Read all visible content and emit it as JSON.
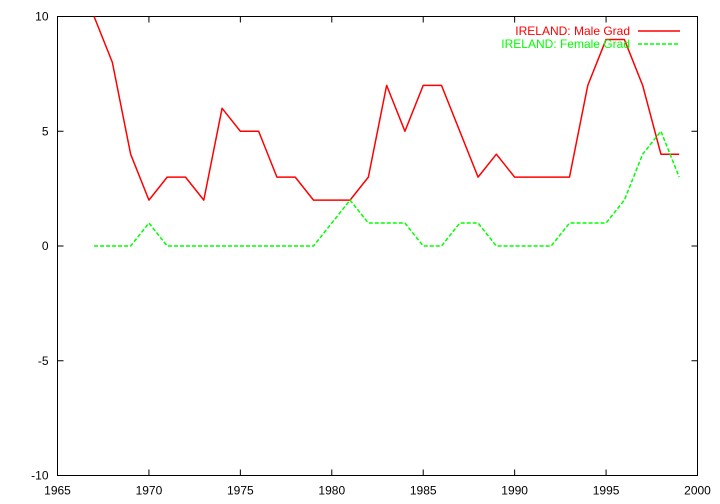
{
  "chart_data": {
    "type": "line",
    "title": "",
    "xlabel": "",
    "ylabel": "",
    "xlim": [
      1965,
      2000
    ],
    "ylim": [
      -10,
      10
    ],
    "grid": false,
    "legend_position": "top-right",
    "x_ticks": [
      1965,
      1970,
      1975,
      1980,
      1985,
      1990,
      1995,
      2000
    ],
    "y_ticks": [
      -10,
      -5,
      0,
      5,
      10
    ],
    "x_tick_labels": [
      "1965",
      "1970",
      "1975",
      "1980",
      "1985",
      "1990",
      "1995",
      "2000"
    ],
    "y_tick_labels": [
      "-10",
      "-5",
      "0",
      "5",
      "10"
    ],
    "x": [
      1967,
      1968,
      1969,
      1970,
      1971,
      1972,
      1973,
      1974,
      1975,
      1976,
      1977,
      1978,
      1979,
      1980,
      1981,
      1982,
      1983,
      1984,
      1985,
      1986,
      1987,
      1988,
      1989,
      1990,
      1991,
      1992,
      1993,
      1994,
      1995,
      1996,
      1997,
      1998,
      1999
    ],
    "series": [
      {
        "name": "IRELAND: Male Grad",
        "color": "#ff0000",
        "style": "solid",
        "values": [
          10,
          8,
          4,
          2,
          3,
          3,
          2,
          6,
          5,
          5,
          3,
          3,
          2,
          2,
          2,
          3,
          7,
          5,
          7,
          7,
          5,
          3,
          4,
          3,
          3,
          3,
          3,
          7,
          9,
          9,
          7,
          4,
          4
        ]
      },
      {
        "name": "IRELAND: Female Grad",
        "color": "#00ff00",
        "style": "dashed",
        "values": [
          0,
          0,
          0,
          1,
          0,
          0,
          0,
          0,
          0,
          0,
          0,
          0,
          0,
          1,
          2,
          1,
          1,
          1,
          0,
          0,
          1,
          1,
          0,
          0,
          0,
          0,
          1,
          1,
          1,
          2,
          4,
          5,
          3
        ]
      }
    ]
  }
}
